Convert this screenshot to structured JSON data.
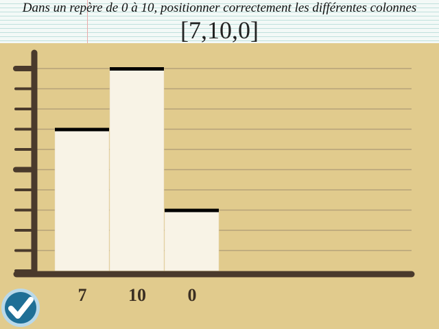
{
  "header": {
    "instruction": "Dans un repère de 0 à 10, positionner correctement les différentes colonnes",
    "target_values": "[7,10,0]"
  },
  "colors": {
    "background": "#e1cb8d",
    "axis": "#4a3a2c",
    "bar_fill": "#f8f3e6",
    "bar_top": "#000000",
    "grid": "#b5a27a"
  },
  "validate_icon": "check-icon",
  "chart_data": {
    "type": "bar",
    "categories": [
      "7",
      "10",
      "0"
    ],
    "values": [
      7,
      10,
      3
    ],
    "ylim": [
      0,
      10
    ],
    "grid": true
  }
}
